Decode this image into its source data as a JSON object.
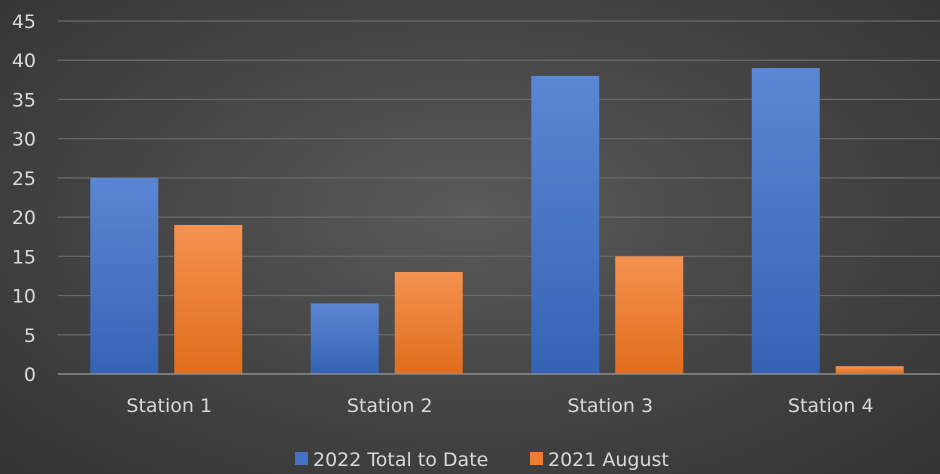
{
  "chart_data": {
    "type": "bar",
    "categories": [
      "Station 1",
      "Station 2",
      "Station 3",
      "Station 4"
    ],
    "series": [
      {
        "name": "2022 Total to Date",
        "values": [
          25,
          9,
          38,
          39
        ],
        "color": "#4472c4"
      },
      {
        "name": "2021 August",
        "values": [
          19,
          13,
          15,
          1
        ],
        "color": "#ed7d31"
      }
    ],
    "y_ticks": [
      "0",
      "5",
      "10",
      "15",
      "20",
      "25",
      "30",
      "35",
      "40",
      "45"
    ],
    "ylim": [
      0,
      45
    ],
    "grid": true,
    "legend": "bottom"
  }
}
